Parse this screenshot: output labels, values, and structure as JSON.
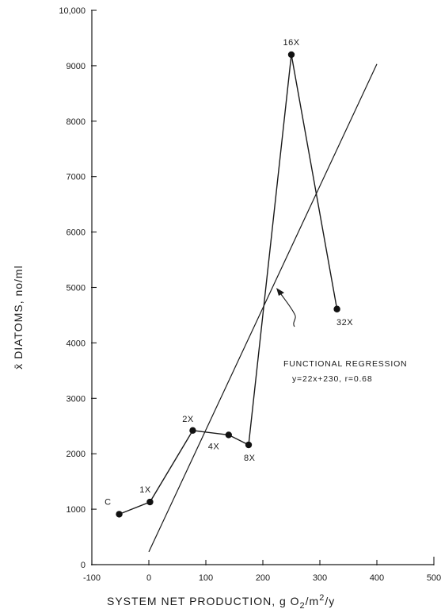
{
  "chart_data": {
    "type": "scatter",
    "title": "",
    "xlabel": {
      "main": "SYSTEM NET PRODUCTION, g O",
      "sub": "2",
      "mid": "/m",
      "sup": "2",
      "tail": "/y"
    },
    "ylabel": "x̄ DIATOMS, no/ml",
    "xlim": [
      -100,
      500
    ],
    "ylim": [
      0,
      10000
    ],
    "x_ticks": [
      -100,
      0,
      100,
      200,
      300,
      400,
      500
    ],
    "x_tick_labels": [
      "-100",
      "0",
      "100",
      "200",
      "300",
      "400",
      "500"
    ],
    "y_ticks": [
      0,
      1000,
      2000,
      3000,
      4000,
      5000,
      6000,
      7000,
      8000,
      9000,
      10000
    ],
    "y_tick_labels": [
      "0",
      "1000",
      "2000",
      "3000",
      "4000",
      "5000",
      "6000",
      "7000",
      "8000",
      "9000",
      "10,000"
    ],
    "grid": false,
    "points": [
      {
        "label": "C",
        "x": -52,
        "y": 910
      },
      {
        "label": "1X",
        "x": 2,
        "y": 1130
      },
      {
        "label": "2X",
        "x": 77,
        "y": 2420
      },
      {
        "label": "4X",
        "x": 140,
        "y": 2340
      },
      {
        "label": "8X",
        "x": 175,
        "y": 2160
      },
      {
        "label": "16X",
        "x": 250,
        "y": 9200
      },
      {
        "label": "32X",
        "x": 330,
        "y": 4610
      }
    ],
    "regression": {
      "slope": 22,
      "intercept": 230,
      "x_range": [
        0,
        400
      ]
    },
    "annotation": {
      "line1": "FUNCTIONAL REGRESSION",
      "line2": "y=22x+230, r=0.68"
    }
  }
}
